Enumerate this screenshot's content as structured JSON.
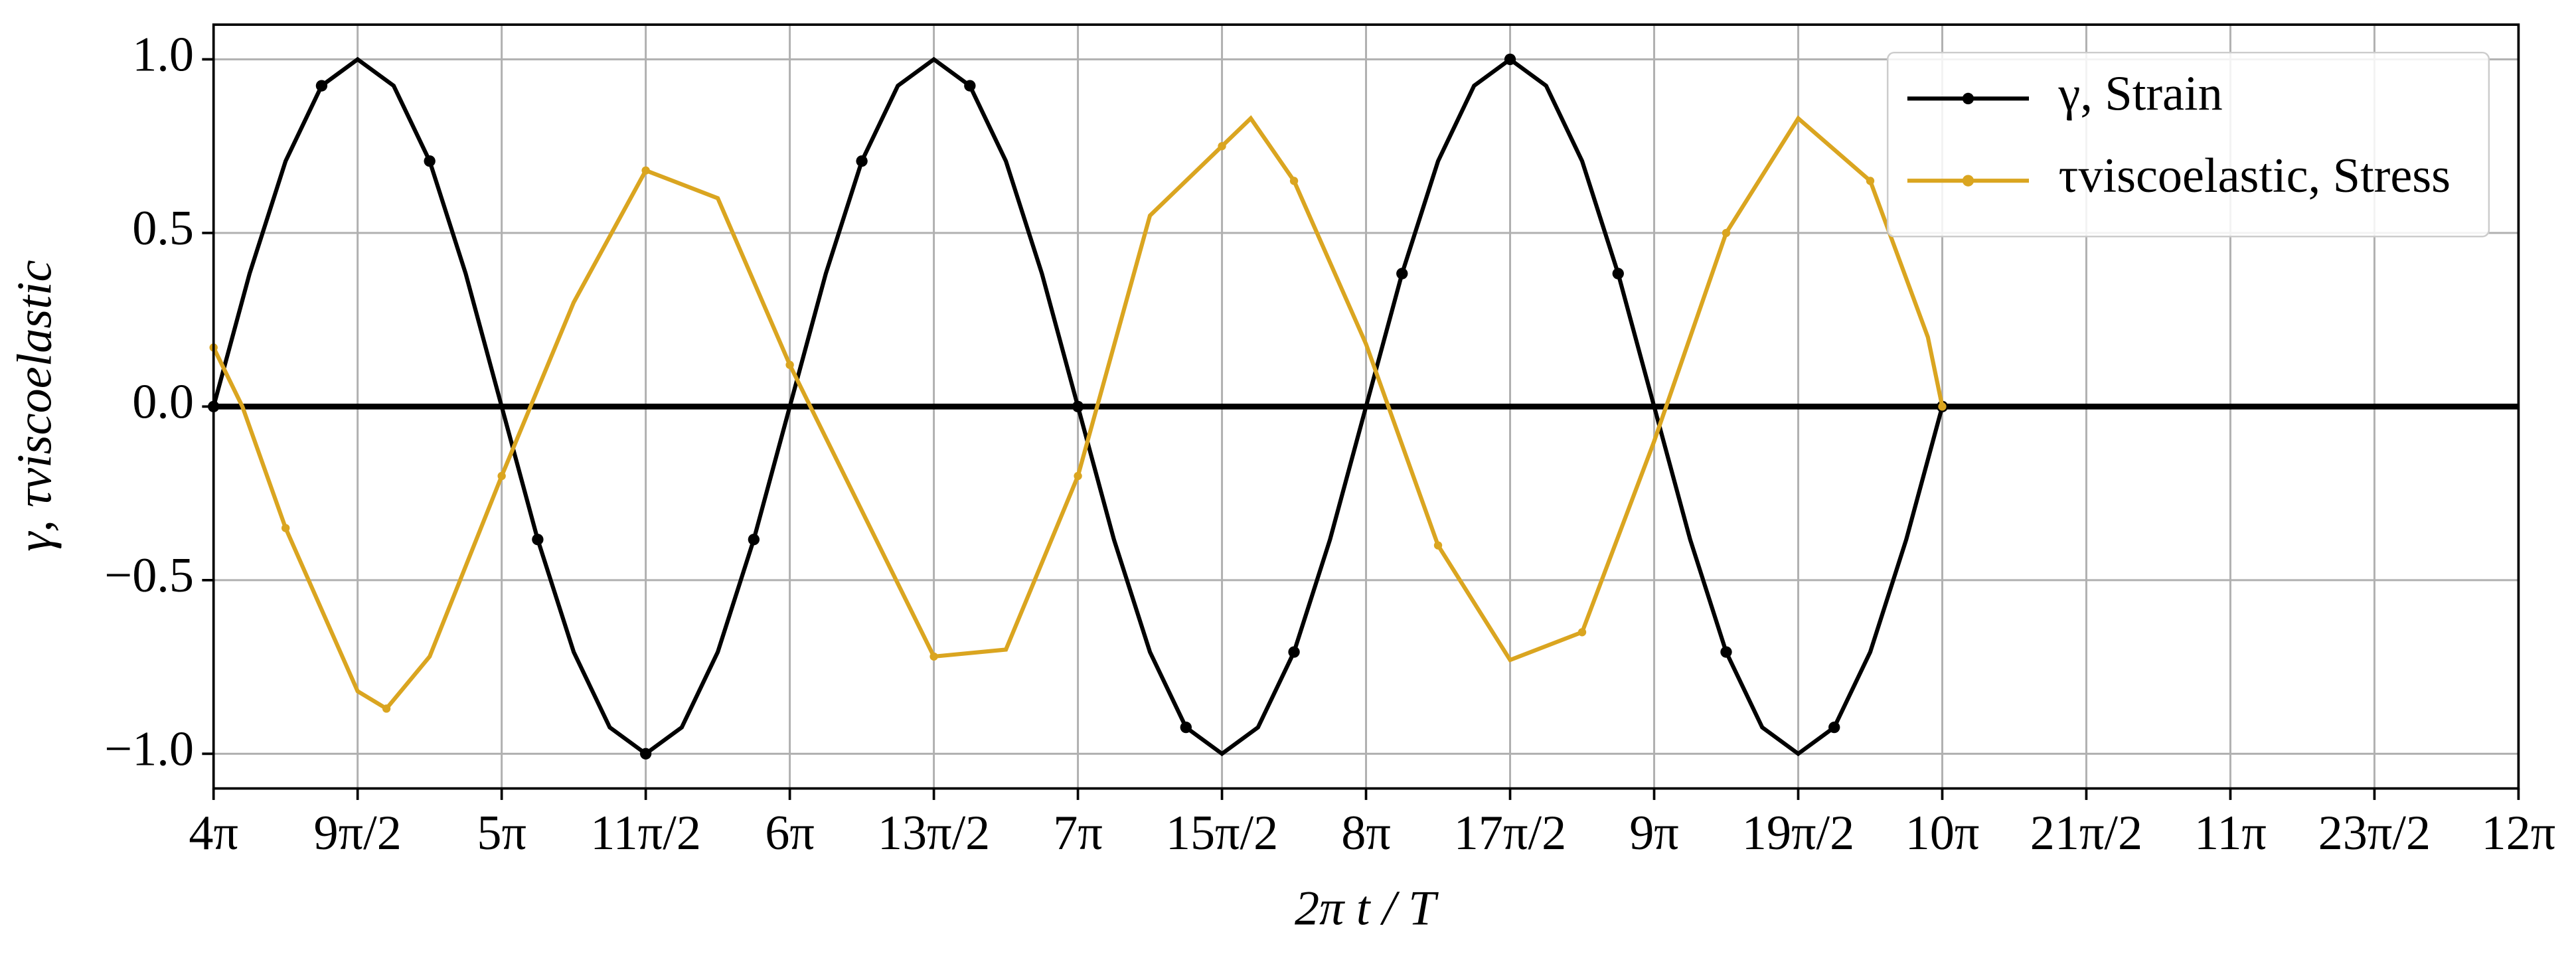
{
  "chart_data": {
    "type": "line",
    "xlabel": "2π t / T",
    "ylabel": "γ, τviscoelastic",
    "xlim": [
      4,
      12
    ],
    "ylim": [
      -1.1,
      1.1
    ],
    "xticks": [
      {
        "value": 4,
        "label": "4π"
      },
      {
        "value": 4.5,
        "label": "9π/2"
      },
      {
        "value": 5,
        "label": "5π"
      },
      {
        "value": 5.5,
        "label": "11π/2"
      },
      {
        "value": 6,
        "label": "6π"
      },
      {
        "value": 6.5,
        "label": "13π/2"
      },
      {
        "value": 7,
        "label": "7π"
      },
      {
        "value": 7.5,
        "label": "15π/2"
      },
      {
        "value": 8,
        "label": "8π"
      },
      {
        "value": 8.5,
        "label": "17π/2"
      },
      {
        "value": 9,
        "label": "9π"
      },
      {
        "value": 9.5,
        "label": "19π/2"
      },
      {
        "value": 10,
        "label": "10π"
      },
      {
        "value": 10.5,
        "label": "21π/2"
      },
      {
        "value": 11,
        "label": "11π"
      },
      {
        "value": 11.5,
        "label": "23π/2"
      },
      {
        "value": 12,
        "label": "12π"
      }
    ],
    "yticks": [
      {
        "value": 1,
        "label": "1.0"
      },
      {
        "value": 0.5,
        "label": "0.5"
      },
      {
        "value": 0,
        "label": "0.0"
      },
      {
        "value": -0.5,
        "label": "−0.5"
      },
      {
        "value": -1,
        "label": "−1.0"
      }
    ],
    "grid": true,
    "reference_line": 0,
    "legend": "upper right",
    "series": [
      {
        "name": "γ, Strain",
        "color": "#000000",
        "x": [
          4,
          4.125,
          4.25,
          4.375,
          4.5,
          4.625,
          4.75,
          4.875,
          5,
          5.125,
          5.25,
          5.375,
          5.5,
          5.625,
          5.75,
          5.875,
          6,
          6.125,
          6.25,
          6.375,
          6.5,
          6.625,
          6.75,
          6.875,
          7,
          7.125,
          7.25,
          7.375,
          7.5,
          7.625,
          7.75,
          7.875,
          8,
          8.125,
          8.25,
          8.375,
          8.5,
          8.625,
          8.75,
          8.875,
          9,
          9.125,
          9.25,
          9.375,
          9.5,
          9.625,
          9.75,
          9.875,
          10
        ],
        "values": [
          0,
          0.383,
          0.707,
          0.924,
          1,
          0.924,
          0.707,
          0.383,
          0,
          -0.383,
          -0.707,
          -0.924,
          -1,
          -0.924,
          -0.707,
          -0.383,
          0,
          0.383,
          0.707,
          0.924,
          1,
          0.924,
          0.707,
          0.383,
          0,
          -0.383,
          -0.707,
          -0.924,
          -1,
          -0.924,
          -0.707,
          -0.383,
          0,
          0.383,
          0.707,
          0.924,
          1,
          0.924,
          0.707,
          0.383,
          0,
          -0.383,
          -0.707,
          -0.924,
          -1,
          -0.924,
          -0.707,
          -0.383,
          0
        ]
      },
      {
        "name": "τviscoelastic, Stress",
        "color": "#daa520",
        "x": [
          4,
          4.1,
          4.25,
          4.5,
          4.6,
          4.75,
          5,
          5.25,
          5.5,
          5.75,
          6,
          6.25,
          6.5,
          6.75,
          7,
          7.25,
          7.5,
          7.6,
          7.75,
          8,
          8.25,
          8.5,
          8.75,
          9,
          9.25,
          9.5,
          9.75,
          9.95,
          10
        ],
        "values": [
          0.17,
          0,
          -0.35,
          -0.82,
          -0.87,
          -0.72,
          -0.2,
          0.3,
          0.68,
          0.6,
          0.12,
          -0.3,
          -0.72,
          -0.7,
          -0.2,
          0.55,
          0.75,
          0.83,
          0.65,
          0.18,
          -0.4,
          -0.73,
          -0.65,
          -0.1,
          0.5,
          0.83,
          0.65,
          0.2,
          0
        ]
      }
    ]
  }
}
